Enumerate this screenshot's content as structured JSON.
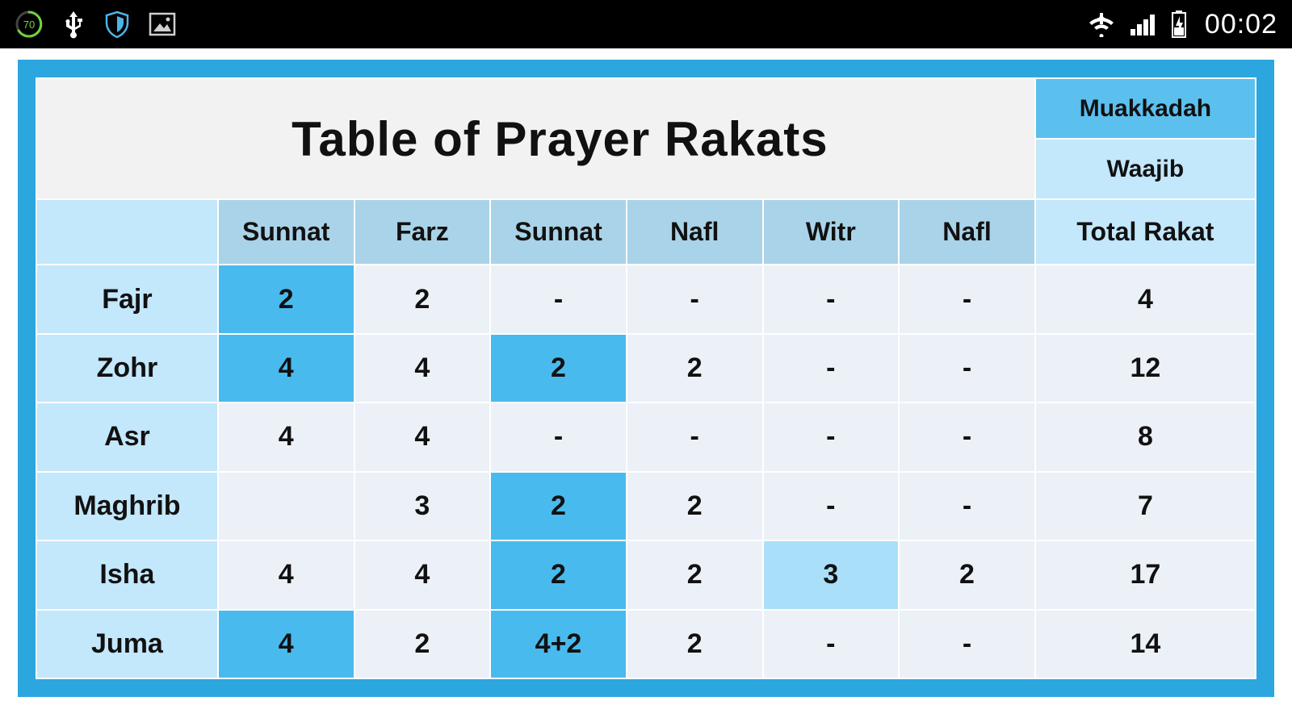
{
  "status": {
    "battery_pct": "70",
    "clock": "00:02"
  },
  "table": {
    "title": "Table of Prayer Rakats",
    "legend": {
      "muakkadah": "Muakkadah",
      "waajib": "Waajib"
    },
    "columns": [
      "Sunnat",
      "Farz",
      "Sunnat",
      "Nafl",
      "Witr",
      "Nafl",
      "Total Rakat"
    ],
    "rows": [
      {
        "label": "Fajr",
        "cells": [
          "2",
          "2",
          "-",
          "-",
          "-",
          "-",
          "4"
        ],
        "hl": [
          "mu",
          "",
          "",
          "",
          "",
          "",
          ""
        ]
      },
      {
        "label": "Zohr",
        "cells": [
          "4",
          "4",
          "2",
          "2",
          "-",
          "-",
          "12"
        ],
        "hl": [
          "mu",
          "",
          "mu",
          "",
          "",
          "",
          ""
        ]
      },
      {
        "label": "Asr",
        "cells": [
          "4",
          "4",
          "-",
          "-",
          "-",
          "-",
          "8"
        ],
        "hl": [
          "",
          "",
          "",
          "",
          "",
          "",
          ""
        ]
      },
      {
        "label": "Maghrib",
        "cells": [
          "",
          "3",
          "2",
          "2",
          "-",
          "-",
          "7"
        ],
        "hl": [
          "",
          "",
          "mu",
          "",
          "",
          "",
          ""
        ]
      },
      {
        "label": "Isha",
        "cells": [
          "4",
          "4",
          "2",
          "2",
          "3",
          "2",
          "17"
        ],
        "hl": [
          "",
          "",
          "mu",
          "",
          "wa",
          "",
          ""
        ]
      },
      {
        "label": "Juma",
        "cells": [
          "4",
          "2",
          "4+2",
          "2",
          "-",
          "-",
          "14"
        ],
        "hl": [
          "mu",
          "",
          "mu",
          "",
          "",
          "",
          ""
        ]
      }
    ]
  },
  "style": {
    "frame_border": "#2ca6df",
    "bg_plain": "#ecf1f8",
    "bg_header_normal": "#a9d3e8",
    "bg_header_light": "#c3e7fb",
    "bg_muakkadah": "#49baee",
    "bg_waajib": "#a9dff8",
    "bg_title": "#f2f2f2",
    "text": "#111111",
    "status_bg": "#000000",
    "status_fg": "#ffffff"
  }
}
